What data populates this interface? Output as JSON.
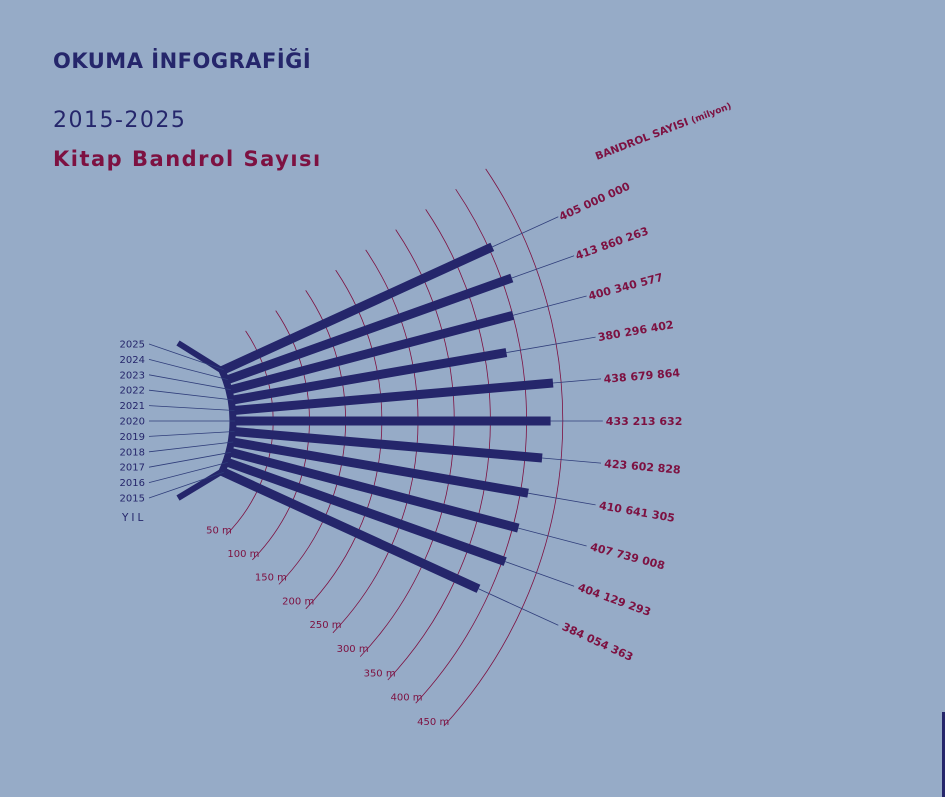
{
  "header": {
    "title": "OKUMA İNFOGRAFİĞİ",
    "years": "2015-2025",
    "subtitle": "Kitap Bandrol Sayısı"
  },
  "colors": {
    "background": "#96abc7",
    "bar": "#25266b",
    "accent": "#7d1141",
    "year_line": "#2f3d7a"
  },
  "chart_data": {
    "type": "bar",
    "layout": "radial-fan",
    "xlabel": "YIL",
    "ylabel": "BANDROL SAYISI",
    "ylabel_unit": "(milyon)",
    "ylim": [
      0,
      450
    ],
    "ring_values": [
      50,
      100,
      150,
      200,
      250,
      300,
      350,
      400,
      450
    ],
    "ring_labels": [
      "50 m",
      "100 m",
      "150 m",
      "200 m",
      "250 m",
      "300 m",
      "350 m",
      "400 m",
      "450 m"
    ],
    "categories": [
      "2025",
      "2024",
      "2023",
      "2022",
      "2021",
      "2020",
      "2019",
      "2018",
      "2017",
      "2016",
      "2015"
    ],
    "values": [
      405.0,
      413.860263,
      400.340577,
      380.296402,
      438.679864,
      433.213632,
      423.602828,
      410.641305,
      407.739008,
      404.129293,
      384.054363
    ],
    "value_labels": [
      "405 000 000",
      "413 860 263",
      "400 340 577",
      "380 296 402",
      "438 679 864",
      "433 213 632",
      "423 602 828",
      "410 641 305",
      "407 739 008",
      "404 129 293",
      "384 054 363"
    ]
  }
}
